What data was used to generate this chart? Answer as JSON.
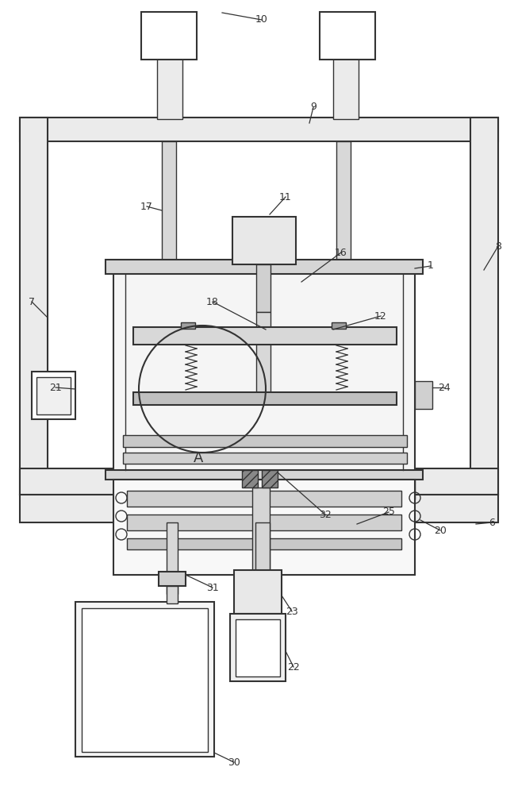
{
  "bg_color": "#ffffff",
  "lc": "#333333",
  "figsize": [
    6.53,
    10.0
  ],
  "dpi": 100
}
